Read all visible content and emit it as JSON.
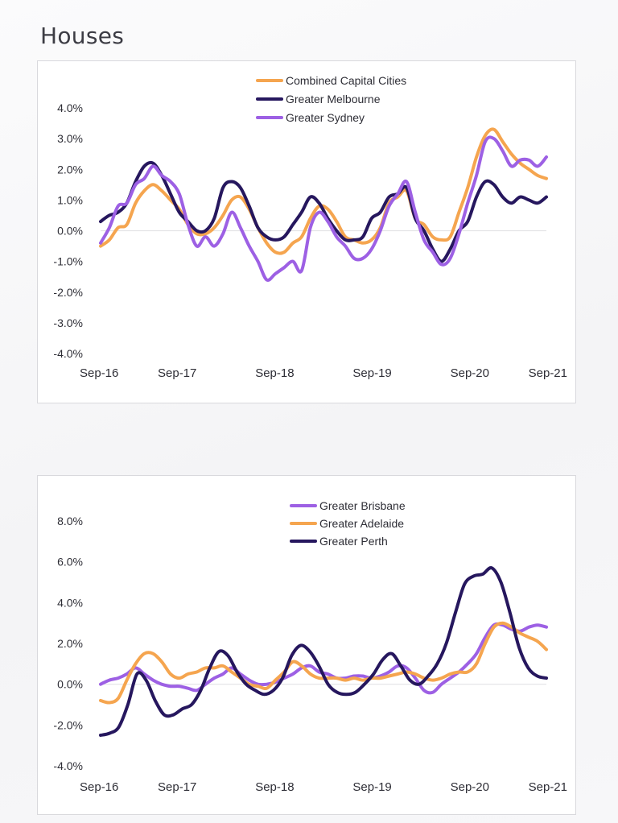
{
  "page": {
    "title": "Houses"
  },
  "colors": {
    "orange": "#f5a54f",
    "navy": "#26175e",
    "purple": "#9d60e4",
    "gridline": "#e3e3e6"
  },
  "chart_data": [
    {
      "type": "line",
      "title": "",
      "xlabel": "",
      "ylabel": "",
      "x_start": "Sep-16",
      "x_end": "Sep-21",
      "x_ticks": [
        "Sep-16",
        "Sep-17",
        "Sep-18",
        "Sep-19",
        "Sep-20",
        "Sep-21"
      ],
      "y_ticks": [
        "4.0%",
        "3.0%",
        "2.0%",
        "1.0%",
        "0.0%",
        "-1.0%",
        "-2.0%",
        "-3.0%",
        "-4.0%"
      ],
      "ylim": [
        -4,
        4
      ],
      "legend_position": "top-center",
      "series": [
        {
          "name": "Combined Capital Cities",
          "color": "#f5a54f",
          "values": [
            -0.5,
            -0.3,
            0.1,
            0.2,
            0.9,
            1.3,
            1.5,
            1.3,
            1.0,
            0.7,
            0.2,
            -0.1,
            -0.1,
            0.1,
            0.5,
            1.0,
            1.1,
            0.7,
            0.1,
            -0.4,
            -0.7,
            -0.7,
            -0.4,
            -0.2,
            0.4,
            0.8,
            0.7,
            0.3,
            -0.2,
            -0.3,
            -0.4,
            -0.3,
            0.1,
            0.9,
            1.1,
            1.3,
            0.4,
            0.2,
            -0.2,
            -0.3,
            -0.2,
            0.6,
            1.4,
            2.4,
            3.1,
            3.3,
            2.9,
            2.5,
            2.2,
            2.0,
            1.8,
            1.7
          ]
        },
        {
          "name": "Greater Melbourne",
          "color": "#26175e",
          "values": [
            0.3,
            0.5,
            0.6,
            0.9,
            1.6,
            2.1,
            2.2,
            1.8,
            1.2,
            0.6,
            0.3,
            0.0,
            0.0,
            0.4,
            1.4,
            1.6,
            1.4,
            0.8,
            0.1,
            -0.2,
            -0.3,
            -0.2,
            0.2,
            0.6,
            1.1,
            0.9,
            0.4,
            0.0,
            -0.3,
            -0.3,
            -0.2,
            0.4,
            0.6,
            1.1,
            1.2,
            1.4,
            0.4,
            0.0,
            -0.6,
            -1.0,
            -0.6,
            0.0,
            0.3,
            1.1,
            1.6,
            1.5,
            1.1,
            0.9,
            1.1,
            1.0,
            0.9,
            1.1
          ]
        },
        {
          "name": "Greater Sydney",
          "color": "#9d60e4",
          "values": [
            -0.4,
            0.1,
            0.8,
            0.9,
            1.5,
            1.7,
            2.1,
            1.8,
            1.6,
            1.2,
            0.2,
            -0.5,
            -0.2,
            -0.5,
            -0.1,
            0.6,
            0.1,
            -0.5,
            -1.0,
            -1.6,
            -1.4,
            -1.2,
            -1.0,
            -1.3,
            0.1,
            0.6,
            0.3,
            -0.2,
            -0.5,
            -0.9,
            -0.9,
            -0.6,
            0.0,
            0.8,
            1.2,
            1.6,
            0.6,
            -0.3,
            -0.7,
            -1.1,
            -0.9,
            -0.1,
            0.9,
            1.8,
            2.9,
            3.0,
            2.6,
            2.1,
            2.3,
            2.3,
            2.1,
            2.4
          ]
        }
      ]
    },
    {
      "type": "line",
      "title": "",
      "xlabel": "",
      "ylabel": "",
      "x_start": "Sep-16",
      "x_end": "Sep-21",
      "x_ticks": [
        "Sep-16",
        "Sep-17",
        "Sep-18",
        "Sep-19",
        "Sep-20",
        "Sep-21"
      ],
      "y_ticks": [
        "8.0%",
        "6.0%",
        "4.0%",
        "2.0%",
        "0.0%",
        "-2.0%",
        "-4.0%"
      ],
      "ylim": [
        -4,
        8
      ],
      "legend_position": "top-center",
      "series": [
        {
          "name": "Greater Brisbane",
          "color": "#9d60e4",
          "values": [
            0.0,
            0.2,
            0.3,
            0.5,
            0.8,
            0.5,
            0.2,
            0.0,
            -0.1,
            -0.1,
            -0.2,
            -0.3,
            0.0,
            0.3,
            0.5,
            0.8,
            0.5,
            0.2,
            0.0,
            0.0,
            0.1,
            0.3,
            0.5,
            0.8,
            0.9,
            0.6,
            0.5,
            0.3,
            0.3,
            0.4,
            0.4,
            0.3,
            0.4,
            0.6,
            0.9,
            0.8,
            0.3,
            -0.3,
            -0.4,
            0.0,
            0.3,
            0.6,
            1.0,
            1.5,
            2.3,
            2.9,
            2.9,
            2.7,
            2.6,
            2.8,
            2.9,
            2.8
          ]
        },
        {
          "name": "Greater Adelaide",
          "color": "#f5a54f",
          "values": [
            -0.8,
            -0.9,
            -0.7,
            0.2,
            1.0,
            1.5,
            1.5,
            1.1,
            0.5,
            0.3,
            0.5,
            0.6,
            0.8,
            0.8,
            0.9,
            0.6,
            0.3,
            0.0,
            -0.1,
            -0.2,
            0.2,
            0.6,
            1.1,
            0.9,
            0.5,
            0.3,
            0.3,
            0.3,
            0.2,
            0.3,
            0.2,
            0.3,
            0.3,
            0.4,
            0.5,
            0.6,
            0.5,
            0.3,
            0.2,
            0.3,
            0.5,
            0.6,
            0.6,
            1.0,
            2.0,
            2.8,
            3.0,
            2.8,
            2.5,
            2.3,
            2.1,
            1.7
          ]
        },
        {
          "name": "Greater Perth",
          "color": "#26175e",
          "values": [
            -2.5,
            -2.4,
            -2.1,
            -1.0,
            0.5,
            0.2,
            -0.8,
            -1.5,
            -1.5,
            -1.2,
            -1.0,
            -0.3,
            0.8,
            1.6,
            1.4,
            0.6,
            0.0,
            -0.3,
            -0.5,
            -0.3,
            0.3,
            1.4,
            1.9,
            1.6,
            0.9,
            0.0,
            -0.4,
            -0.5,
            -0.4,
            0.0,
            0.5,
            1.2,
            1.5,
            0.9,
            0.2,
            0.0,
            0.4,
            1.0,
            2.0,
            3.5,
            4.9,
            5.3,
            5.4,
            5.7,
            5.0,
            3.5,
            1.8,
            0.8,
            0.4,
            0.3
          ]
        }
      ]
    }
  ]
}
